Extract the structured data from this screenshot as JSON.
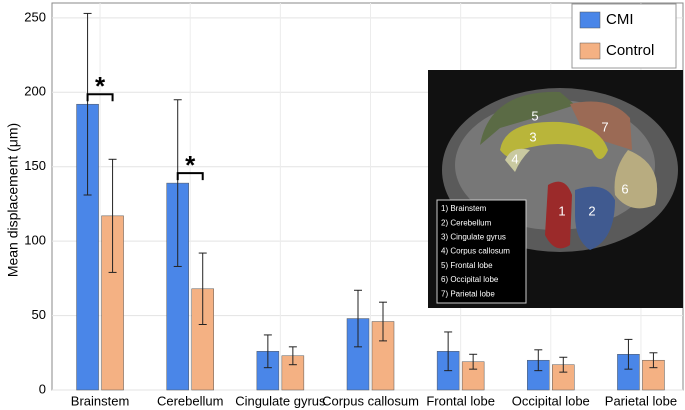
{
  "chart_data": {
    "type": "bar",
    "y_label": "Mean displacement (μm)",
    "categories": [
      "Brainstem",
      "Cerebellum",
      "Cingulate gyrus",
      "Corpus callosum",
      "Frontal lobe",
      "Occipital lobe",
      "Parietal lobe"
    ],
    "series": [
      {
        "name": "CMI",
        "color": "#4a86e8",
        "values": [
          192,
          139,
          26,
          48,
          26,
          20,
          24
        ],
        "errors": [
          61,
          56,
          11,
          19,
          13,
          7,
          10
        ]
      },
      {
        "name": "Control",
        "color": "#f4b183",
        "values": [
          117,
          68,
          23,
          46,
          19,
          17,
          20
        ],
        "errors": [
          38,
          24,
          6,
          13,
          5,
          5,
          5
        ]
      }
    ],
    "ylim": [
      0,
      260
    ],
    "yticks": [
      0,
      50,
      100,
      150,
      200,
      250
    ],
    "grid": true,
    "legend": "upper right",
    "annotations": [
      {
        "text": "*",
        "category": 0
      },
      {
        "text": "*",
        "category": 1
      }
    ],
    "inset": {
      "region_numbers": [
        "1",
        "2",
        "3",
        "4",
        "5",
        "6",
        "7"
      ],
      "legend": [
        "1) Brainstem",
        "2) Cerebellum",
        "3) Cingulate gyrus",
        "4) Corpus callosum",
        "5) Frontal lobe",
        "6) Occipital lobe",
        "7) Parietal lobe"
      ]
    }
  }
}
